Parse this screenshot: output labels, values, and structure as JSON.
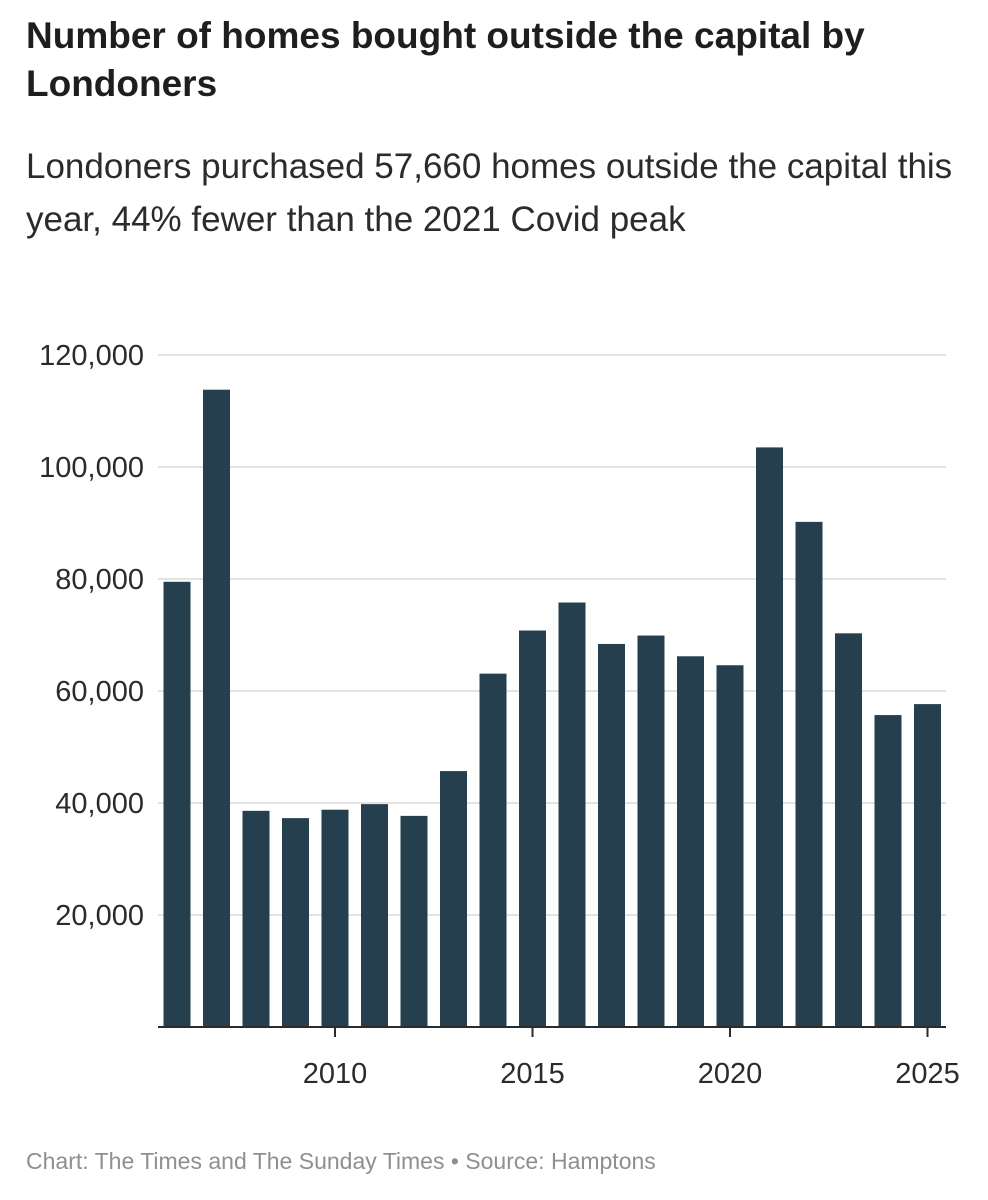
{
  "title": "Number of homes bought outside the capital by Londoners",
  "subtitle": "Londoners purchased 57,660 homes outside the capital this year, 44% fewer than the 2021 Covid peak",
  "footer": "Chart: The Times and The Sunday Times • Source: Hamptons",
  "colors": {
    "bar": "#263f4e",
    "grid": "#e3e3e3",
    "axis": "#2b2b2b"
  },
  "chart_data": {
    "type": "bar",
    "x": [
      2006,
      2007,
      2008,
      2009,
      2010,
      2011,
      2012,
      2013,
      2014,
      2015,
      2016,
      2017,
      2018,
      2019,
      2020,
      2021,
      2022,
      2023,
      2024,
      2025
    ],
    "values": [
      79500,
      113800,
      38600,
      37300,
      38800,
      39800,
      37700,
      45700,
      63100,
      70800,
      75800,
      68400,
      69900,
      66200,
      64600,
      103500,
      90200,
      70300,
      55700,
      57660
    ],
    "yticks": [
      20000,
      40000,
      60000,
      80000,
      100000,
      120000
    ],
    "ytick_labels": [
      "20,000",
      "40,000",
      "60,000",
      "80,000",
      "100,000",
      "120,000"
    ],
    "xticks": [
      2010,
      2015,
      2020,
      2025
    ],
    "xtick_labels": [
      "2010",
      "2015",
      "2020",
      "2025"
    ],
    "ylim": [
      0,
      120000
    ],
    "grid": true
  }
}
